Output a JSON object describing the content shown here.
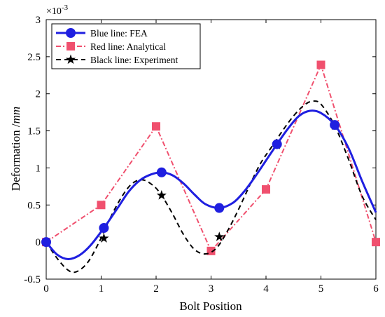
{
  "chart_data": {
    "type": "line",
    "xlabel": "Bolt Position",
    "ylabel": "Deformation /",
    "ylabel_unit": "mm",
    "y_exponent_base": "×10",
    "y_exponent_power": "-3",
    "xlim": [
      0,
      6
    ],
    "ylim": [
      -0.5,
      3
    ],
    "x_ticks": [
      0,
      1,
      2,
      3,
      4,
      5,
      6
    ],
    "y_ticks": [
      -0.5,
      0,
      0.5,
      1,
      1.5,
      2,
      2.5,
      3
    ],
    "legend_position": "top-left",
    "series": [
      {
        "name": "Blue line: FEA",
        "color": "#1f1fe0",
        "style": "solid",
        "marker": "circle",
        "markers": [
          {
            "x": 0,
            "y": 0
          },
          {
            "x": 1.05,
            "y": 0.19
          },
          {
            "x": 2.1,
            "y": 0.94
          },
          {
            "x": 3.15,
            "y": 0.46
          },
          {
            "x": 4.2,
            "y": 1.32
          },
          {
            "x": 5.25,
            "y": 1.58
          }
        ],
        "curve": [
          {
            "x": 0,
            "y": 0
          },
          {
            "x": 0.2,
            "y": -0.17
          },
          {
            "x": 0.4,
            "y": -0.23
          },
          {
            "x": 0.6,
            "y": -0.18
          },
          {
            "x": 0.8,
            "y": -0.05
          },
          {
            "x": 1.05,
            "y": 0.19
          },
          {
            "x": 1.3,
            "y": 0.46
          },
          {
            "x": 1.5,
            "y": 0.68
          },
          {
            "x": 1.7,
            "y": 0.83
          },
          {
            "x": 1.9,
            "y": 0.91
          },
          {
            "x": 2.1,
            "y": 0.94
          },
          {
            "x": 2.3,
            "y": 0.9
          },
          {
            "x": 2.5,
            "y": 0.79
          },
          {
            "x": 2.7,
            "y": 0.64
          },
          {
            "x": 2.9,
            "y": 0.51
          },
          {
            "x": 3.15,
            "y": 0.46
          },
          {
            "x": 3.4,
            "y": 0.53
          },
          {
            "x": 3.6,
            "y": 0.68
          },
          {
            "x": 3.8,
            "y": 0.88
          },
          {
            "x": 4.0,
            "y": 1.1
          },
          {
            "x": 4.2,
            "y": 1.32
          },
          {
            "x": 4.4,
            "y": 1.53
          },
          {
            "x": 4.6,
            "y": 1.7
          },
          {
            "x": 4.8,
            "y": 1.77
          },
          {
            "x": 5.0,
            "y": 1.74
          },
          {
            "x": 5.25,
            "y": 1.58
          },
          {
            "x": 5.5,
            "y": 1.27
          },
          {
            "x": 5.75,
            "y": 0.82
          },
          {
            "x": 6.0,
            "y": 0.4
          }
        ]
      },
      {
        "name": "Red line: Analytical",
        "color": "#f0506e",
        "style": "dashdot",
        "marker": "square",
        "markers": [
          {
            "x": 0,
            "y": 0
          },
          {
            "x": 1,
            "y": 0.5
          },
          {
            "x": 2,
            "y": 1.56
          },
          {
            "x": 3,
            "y": -0.12
          },
          {
            "x": 4,
            "y": 0.71
          },
          {
            "x": 5,
            "y": 2.39
          },
          {
            "x": 6,
            "y": 0
          }
        ],
        "curve": [
          {
            "x": 0,
            "y": 0
          },
          {
            "x": 1,
            "y": 0.5
          },
          {
            "x": 2,
            "y": 1.56
          },
          {
            "x": 3,
            "y": -0.12
          },
          {
            "x": 4,
            "y": 0.71
          },
          {
            "x": 5,
            "y": 2.39
          },
          {
            "x": 6,
            "y": 0
          }
        ]
      },
      {
        "name": "Black line: Experiment",
        "color": "#000000",
        "style": "dashed",
        "marker": "star",
        "markers": [
          {
            "x": 0,
            "y": 0
          },
          {
            "x": 1.05,
            "y": 0.05
          },
          {
            "x": 2.1,
            "y": 0.63
          },
          {
            "x": 3.15,
            "y": 0.07
          },
          {
            "x": 4.2,
            "y": 1.31
          },
          {
            "x": 5.25,
            "y": 1.57
          }
        ],
        "curve": [
          {
            "x": 0,
            "y": 0
          },
          {
            "x": 0.2,
            "y": -0.22
          },
          {
            "x": 0.4,
            "y": -0.38
          },
          {
            "x": 0.55,
            "y": -0.4
          },
          {
            "x": 0.75,
            "y": -0.28
          },
          {
            "x": 0.95,
            "y": -0.02
          },
          {
            "x": 1.15,
            "y": 0.3
          },
          {
            "x": 1.35,
            "y": 0.58
          },
          {
            "x": 1.55,
            "y": 0.78
          },
          {
            "x": 1.75,
            "y": 0.84
          },
          {
            "x": 1.95,
            "y": 0.76
          },
          {
            "x": 2.1,
            "y": 0.63
          },
          {
            "x": 2.3,
            "y": 0.38
          },
          {
            "x": 2.5,
            "y": 0.1
          },
          {
            "x": 2.7,
            "y": -0.1
          },
          {
            "x": 2.9,
            "y": -0.16
          },
          {
            "x": 3.1,
            "y": -0.08
          },
          {
            "x": 3.3,
            "y": 0.15
          },
          {
            "x": 3.5,
            "y": 0.44
          },
          {
            "x": 3.7,
            "y": 0.76
          },
          {
            "x": 3.9,
            "y": 1.06
          },
          {
            "x": 4.1,
            "y": 1.28
          },
          {
            "x": 4.3,
            "y": 1.5
          },
          {
            "x": 4.5,
            "y": 1.7
          },
          {
            "x": 4.7,
            "y": 1.85
          },
          {
            "x": 4.85,
            "y": 1.9
          },
          {
            "x": 5.0,
            "y": 1.86
          },
          {
            "x": 5.25,
            "y": 1.57
          },
          {
            "x": 5.5,
            "y": 1.12
          },
          {
            "x": 5.75,
            "y": 0.62
          },
          {
            "x": 6.0,
            "y": 0.3
          }
        ]
      }
    ]
  }
}
